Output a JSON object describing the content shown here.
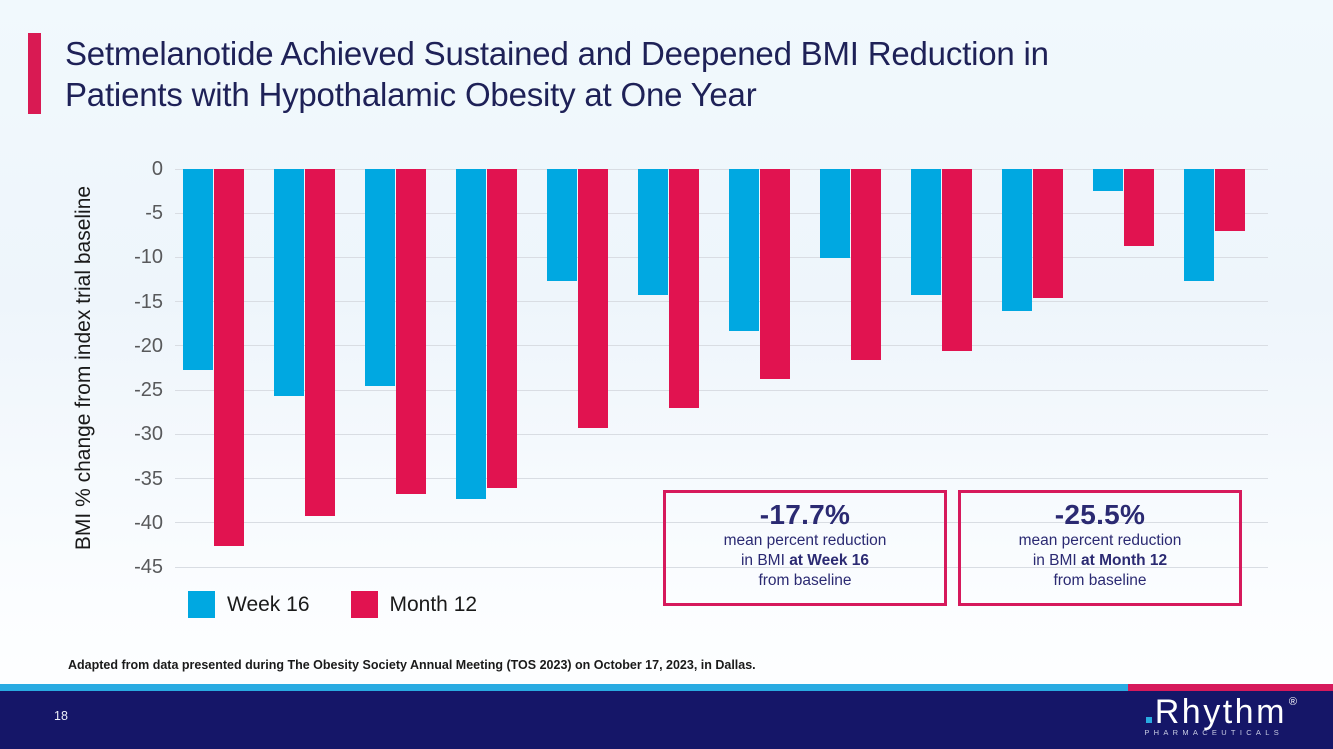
{
  "header": {
    "title_lines": [
      "Setmelanotide Achieved Sustained and Deepened BMI Reduction in",
      "Patients with Hypothalamic Obesity at One Year"
    ]
  },
  "chart_data": {
    "type": "bar",
    "title": "",
    "xlabel": "",
    "ylabel": "BMI % change from index trial baseline",
    "ylim": [
      -45,
      0
    ],
    "yticks": [
      0,
      -5,
      -10,
      -15,
      -20,
      -25,
      -30,
      -35,
      -40,
      -45
    ],
    "grid": true,
    "legend_position": "bottom-left",
    "series": [
      {
        "name": "Week 16",
        "color": "#00a8e1",
        "values": [
          -22.7,
          -25.7,
          -24.5,
          -37.3,
          -12.7,
          -14.3,
          -18.3,
          -10.1,
          -14.3,
          -16.1,
          -2.5,
          -12.7
        ]
      },
      {
        "name": "Month 12",
        "color": "#e11350",
        "values": [
          -42.6,
          -39.2,
          -36.8,
          -36.1,
          -29.3,
          -27.0,
          -23.8,
          -21.6,
          -20.6,
          -14.6,
          -8.7,
          -7.0
        ]
      }
    ]
  },
  "callouts": [
    {
      "value": "-17.7%",
      "line1": "mean percent reduction",
      "line2_regular": "in BMI ",
      "line2_bold": "at Week 16",
      "line3": "from baseline"
    },
    {
      "value": "-25.5%",
      "line1": "mean percent reduction",
      "line2_regular": "in BMI ",
      "line2_bold": "at Month 12",
      "line3": "from baseline"
    }
  ],
  "footnote": "Adapted from data presented during The Obesity Society Annual Meeting (TOS 2023) on October 17, 2023, in Dallas.",
  "footer": {
    "page_number": "18",
    "logo": {
      "brand": "Rhythm",
      "registered": "®",
      "subtext": "PHARMACEUTICALS"
    }
  },
  "colors": {
    "accent_crimson": "#d91a53",
    "bar_blue": "#00a8e1",
    "bar_crimson": "#e11350",
    "strip_cyan": "#29abe2",
    "footer_navy": "#151668",
    "title_navy": "#1e2157"
  }
}
